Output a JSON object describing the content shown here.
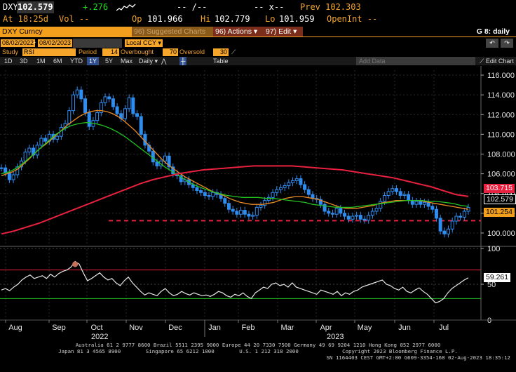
{
  "quote": {
    "ticker": "DXY",
    "last": "102.579",
    "change": "+.276",
    "time_label": "At 18:25d",
    "vol_label": "Vol --",
    "open_dashes": "-- /--",
    "x_dashes": "-- x--",
    "prev_label": "Prev 102.303",
    "open_label": "Op",
    "open_value": "101.966",
    "high_label": "Hi",
    "high_value": "102.779",
    "low_label": "Lo",
    "low_value": "101.959",
    "openint_label": "OpenInt --"
  },
  "toolbar": {
    "security": "DXY Curncy",
    "suggested": "96) Suggested Charts",
    "actions": "96) Actions",
    "edit": "97) Edit",
    "gtitle": "G 8: daily"
  },
  "params": {
    "start_date": "08/02/2022",
    "end_date": "08/02/2023",
    "currency": "Local CCY",
    "study_label": "Study",
    "study_value": "RSI",
    "period_label": "Period",
    "period_value": "14",
    "overbought_label": "Overbought",
    "overbought_value": "70",
    "oversold_label": "Oversold",
    "oversold_value": "30"
  },
  "tabs": [
    "1D",
    "3D",
    "1M",
    "6M",
    "YTD",
    "1Y",
    "5Y",
    "Max",
    "Daily",
    "Table"
  ],
  "tabs_selected": "1Y",
  "add_data_placeholder": "Add Data",
  "edit_chart_label": "Edit Chart",
  "price_axis": [
    "116.000",
    "114.000",
    "112.000",
    "110.000",
    "108.000",
    "106.000",
    "104.000",
    "102.000",
    "100.000"
  ],
  "rsi_axis": [
    "100",
    "50",
    "0"
  ],
  "tags": {
    "ma200": "103.715",
    "last": "102.579",
    "low": "101.254",
    "rsi": "59.261"
  },
  "colors": {
    "ma200": "#e8213f",
    "ma50": "#22c322",
    "ma20": "#e88a24",
    "candle": "#2f8df0",
    "support": "#e8213f"
  },
  "months": [
    "Aug",
    "Sep",
    "Oct",
    "Nov",
    "Dec",
    "Jan",
    "Feb",
    "Mar",
    "Apr",
    "May",
    "Jun",
    "Jul"
  ],
  "years": [
    "2022",
    "2023"
  ],
  "footer": {
    "line1": "Australia 61 2 9777 8600 Brazil 5511 2395 9000 Europe 44 20 7330 7500 Germany 49 69 9204 1210 Hong Kong 852 2977 6000",
    "line2": "Japan 81 3 4565 8900        Singapore 65 6212 1000        U.S. 1 212 318 2000              Copyright 2023 Bloomberg Finance L.P.",
    "line3": "SN 1164403 CEST GMT+2:00 G609-3354-168 02-Aug-2023 18:35:12"
  },
  "chart_data": {
    "type": "line",
    "price_range": [
      99.0,
      116.5
    ],
    "rsi_range": [
      0,
      100
    ],
    "rsi_levels": {
      "overbought": 70,
      "oversold": 30
    },
    "support_level": 101.254,
    "grid": true,
    "series": [
      {
        "name": "",
        "values": [
          106.6,
          106.1,
          105.4,
          105.9,
          106.7,
          107.3,
          108.2,
          108.6,
          107.9,
          108.9,
          109.6,
          109.3,
          110.0,
          109.5,
          109.8,
          110.7,
          111.1,
          112.4,
          114.0,
          114.5,
          113.6,
          112.2,
          110.8,
          111.4,
          112.2,
          113.2,
          113.8,
          113.6,
          112.8,
          112.1,
          111.6,
          112.6,
          113.7,
          112.1,
          111.8,
          110.0,
          108.9,
          108.3,
          107.2,
          106.8,
          107.3,
          107.8,
          106.7,
          106.0,
          105.8,
          105.2,
          105.4,
          104.9,
          104.6,
          104.3,
          104.1,
          103.8,
          103.7,
          104.1,
          103.9,
          103.5,
          103.0,
          102.4,
          102.2,
          101.9,
          102.3,
          101.9,
          101.7,
          101.8,
          102.6,
          102.8,
          103.3,
          103.6,
          104.1,
          104.4,
          104.6,
          104.8,
          105.1,
          105.3,
          105.5,
          104.9,
          104.4,
          103.9,
          103.5,
          103.4,
          102.9,
          102.2,
          102.0,
          101.9,
          102.5,
          102.0,
          101.7,
          101.4,
          101.7,
          101.8,
          101.4,
          101.3,
          101.8,
          102.2,
          102.5,
          103.2,
          103.8,
          104.2,
          104.5,
          104.2,
          103.8,
          103.9,
          103.3,
          102.9,
          103.2,
          102.9,
          103.1,
          102.7,
          102.4,
          101.5,
          100.2,
          99.9,
          100.4,
          101.2,
          101.7,
          101.6,
          102.2,
          102.6
        ]
      },
      {
        "name": "",
        "values": [
          105.8,
          106.0,
          106.2,
          106.5,
          107.0,
          107.5,
          108.1,
          108.6,
          109.0,
          109.5,
          110.0,
          110.5,
          111.0,
          111.4,
          111.8,
          112.1,
          112.3,
          112.4,
          112.4,
          112.3,
          112.1,
          111.8,
          111.4,
          110.9,
          110.4,
          109.8,
          109.2,
          108.6,
          108.0,
          107.4,
          106.9,
          106.5,
          106.1,
          105.7,
          105.4,
          105.1,
          104.8,
          104.5,
          104.2,
          104.0,
          103.8,
          103.5,
          103.3,
          103.1,
          103.0,
          102.9,
          102.9,
          102.9,
          103.0,
          103.1,
          103.3,
          103.5,
          103.6,
          103.7,
          103.7,
          103.6,
          103.5,
          103.4,
          103.2,
          103.0,
          102.8,
          102.6,
          102.5,
          102.5,
          102.5,
          102.6,
          102.7,
          102.8,
          103.0,
          103.1,
          103.2,
          103.3,
          103.3,
          103.3,
          103.3,
          103.3,
          103.2,
          103.1,
          103.0,
          102.9,
          102.8,
          102.7,
          102.6,
          102.5,
          102.4
        ]
      },
      {
        "name": "",
        "values": [
          99.9,
          100.2,
          100.6,
          101.0,
          101.5,
          102.0,
          102.5,
          103.0,
          103.5,
          104.0,
          104.5,
          105.0,
          105.4,
          105.7,
          106.0,
          106.2,
          106.4,
          106.5,
          106.6,
          106.7,
          106.8,
          106.8,
          106.8,
          106.8,
          106.7,
          106.6,
          106.5,
          106.4,
          106.2,
          106.0,
          105.8,
          105.6,
          105.3,
          105.0,
          104.7,
          104.3,
          103.9,
          103.7
        ]
      },
      {
        "name": "",
        "values": [
          42,
          44,
          41,
          46,
          50,
          56,
          60,
          63,
          58,
          60,
          62,
          58,
          64,
          60,
          65,
          68,
          70,
          74,
          82,
          78,
          66,
          55,
          58,
          62,
          66,
          60,
          56,
          58,
          52,
          48,
          55,
          60,
          52,
          46,
          40,
          35,
          38,
          36,
          34,
          40,
          44,
          38,
          34,
          36,
          40,
          37,
          35,
          38,
          36,
          34,
          35,
          33,
          36,
          40,
          38,
          34,
          32,
          36,
          34,
          38,
          33,
          30,
          38,
          42,
          46,
          44,
          50,
          52,
          48,
          50,
          46,
          52,
          46,
          44,
          42,
          40,
          38,
          36,
          42,
          40,
          38,
          36,
          40,
          34,
          38,
          36,
          40,
          42,
          46,
          48,
          50,
          52,
          54,
          56,
          50,
          48,
          44,
          42,
          46,
          40,
          38,
          42,
          45,
          40,
          36,
          30,
          24,
          26,
          30,
          38,
          44,
          48,
          52,
          56,
          59
        ]
      }
    ]
  }
}
